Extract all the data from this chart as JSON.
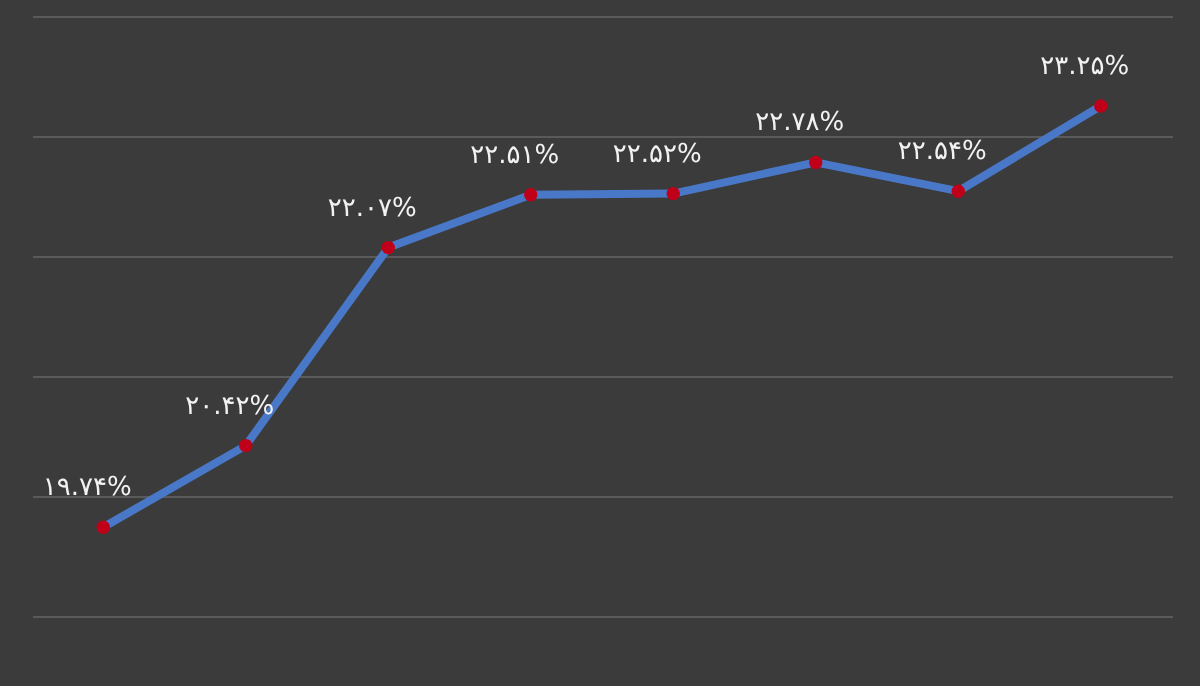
{
  "chart_data": {
    "type": "line",
    "categories": [
      null,
      null,
      null,
      null,
      null,
      null,
      null,
      null
    ],
    "series": [
      {
        "color": "#4a78c8",
        "values": [
          19.74,
          20.42,
          22.07,
          22.51,
          22.52,
          22.78,
          22.54,
          23.25
        ],
        "value_labels": [
          "۱۹.۷۴%",
          "۲۰.۴۲%",
          "۲۲.۰۷%",
          "۲۲.۵۱%",
          "۲۲.۵۲%",
          "۲۲.۷۸%",
          "۲۲.۵۴%",
          "۲۳.۲۵%"
        ]
      }
    ],
    "ylim": [
      19,
      24
    ],
    "yticks": [
      {
        "value": 19,
        "label": null
      },
      {
        "value": 20,
        "label": null
      },
      {
        "value": 21,
        "label": null
      },
      {
        "value": 22,
        "label": null
      },
      {
        "value": 23,
        "label": null
      },
      {
        "value": 24,
        "label": null
      }
    ],
    "grid": "y",
    "tick_labels": false,
    "marker": "circle"
  }
}
